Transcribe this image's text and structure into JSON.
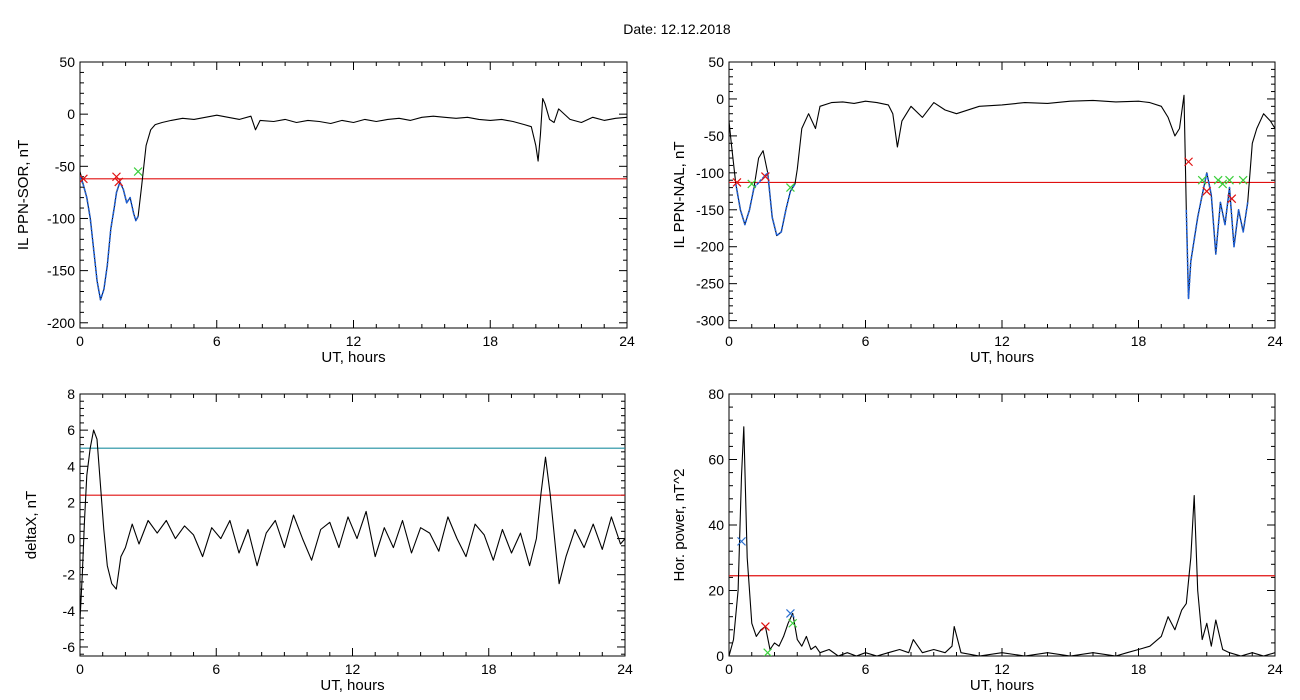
{
  "figure": {
    "title": "Date:  12.12.2018"
  },
  "colors": {
    "axes": "#000000",
    "trace": "#000000",
    "highlight_trace": "#1f5fd4",
    "threshold_red": "#e01010",
    "threshold_teal": "#1f8fa0",
    "marker_red": "#e01010",
    "marker_green": "#3ccf3c",
    "marker_blue": "#2a6fd0"
  },
  "chart_data": [
    {
      "id": "sor",
      "type": "line",
      "title": "",
      "xlabel": "UT, hours",
      "ylabel": "IL PPN-SOR, nT",
      "xlim": [
        0,
        24
      ],
      "ylim": [
        -205,
        50
      ],
      "xticks": [
        0,
        6,
        12,
        18,
        24
      ],
      "yticks": [
        50,
        0,
        -50,
        -100,
        -150,
        -200
      ],
      "grid": false,
      "series": [
        {
          "role": "trace",
          "x": [
            0,
            0.15,
            0.3,
            0.45,
            0.6,
            0.75,
            0.9,
            1.05,
            1.2,
            1.35,
            1.5,
            1.6,
            1.75,
            1.9,
            2.05,
            2.2,
            2.35,
            2.45,
            2.55,
            2.7,
            2.9,
            3.1,
            3.3,
            3.6,
            4.0,
            4.5,
            5.0,
            5.5,
            6.0,
            6.5,
            7.0,
            7.5,
            7.7,
            7.9,
            8.5,
            9.0,
            9.5,
            10.0,
            10.5,
            11.0,
            11.5,
            12.0,
            12.5,
            13.0,
            13.5,
            14.0,
            14.5,
            15.0,
            15.5,
            16.0,
            16.5,
            17.0,
            17.5,
            18.0,
            18.5,
            19.0,
            19.5,
            19.8,
            20.0,
            20.1,
            20.2,
            20.3,
            20.4,
            20.6,
            20.8,
            21.0,
            21.5,
            22.0,
            22.5,
            23.0,
            23.5,
            24.0
          ],
          "y": [
            -55,
            -68,
            -80,
            -100,
            -130,
            -160,
            -178,
            -168,
            -145,
            -110,
            -90,
            -75,
            -65,
            -72,
            -85,
            -80,
            -95,
            -102,
            -98,
            -70,
            -30,
            -15,
            -10,
            -8,
            -6,
            -4,
            -5,
            -3,
            -1,
            -3,
            -5,
            -2,
            -15,
            -6,
            -7,
            -5,
            -8,
            -6,
            -7,
            -9,
            -6,
            -8,
            -5,
            -7,
            -5,
            -4,
            -6,
            -3,
            -2,
            -3,
            -4,
            -3,
            -5,
            -6,
            -5,
            -7,
            -10,
            -12,
            -30,
            -45,
            -20,
            15,
            10,
            -5,
            -8,
            5,
            -5,
            -8,
            -3,
            -6,
            -4,
            -3
          ]
        },
        {
          "role": "highlight",
          "x": [
            0,
            0.15,
            0.3,
            0.45,
            0.6,
            0.75,
            0.9,
            1.05,
            1.2,
            1.35,
            1.5,
            1.6,
            1.75,
            1.9,
            2.05,
            2.2,
            2.35,
            2.45,
            2.55
          ],
          "y": [
            -60,
            -68,
            -80,
            -100,
            -130,
            -160,
            -178,
            -168,
            -145,
            -110,
            -90,
            -75,
            -65,
            -72,
            -85,
            -80,
            -95,
            -102,
            -98
          ]
        }
      ],
      "thresholds": [
        {
          "y": -62,
          "color": "red"
        }
      ],
      "markers": [
        {
          "x": 0.15,
          "y": -62,
          "color": "red"
        },
        {
          "x": 1.6,
          "y": -60,
          "color": "red"
        },
        {
          "x": 1.7,
          "y": -65,
          "color": "red"
        },
        {
          "x": 2.55,
          "y": -55,
          "color": "green"
        }
      ]
    },
    {
      "id": "nal",
      "type": "line",
      "title": "",
      "xlabel": "UT, hours",
      "ylabel": "IL PPN-NAL, nT",
      "xlim": [
        0,
        24
      ],
      "ylim": [
        -310,
        50
      ],
      "xticks": [
        0,
        6,
        12,
        18,
        24
      ],
      "yticks": [
        50,
        0,
        -50,
        -100,
        -150,
        -200,
        -250,
        -300
      ],
      "grid": false,
      "series": [
        {
          "role": "trace",
          "x": [
            0,
            0.1,
            0.3,
            0.5,
            0.7,
            0.9,
            1.1,
            1.3,
            1.5,
            1.7,
            1.9,
            2.1,
            2.3,
            2.5,
            2.7,
            2.9,
            3.0,
            3.2,
            3.5,
            3.8,
            4.0,
            4.5,
            5.0,
            5.5,
            6.0,
            6.5,
            7.0,
            7.2,
            7.4,
            7.6,
            8.0,
            8.5,
            9.0,
            9.5,
            10.0,
            11.0,
            12.0,
            13.0,
            14.0,
            15.0,
            16.0,
            17.0,
            18.0,
            18.5,
            19.0,
            19.3,
            19.6,
            19.8,
            20.0,
            20.1,
            20.2,
            20.3,
            20.4,
            20.6,
            20.8,
            21.0,
            21.2,
            21.4,
            21.6,
            21.8,
            22.0,
            22.2,
            22.4,
            22.6,
            22.8,
            23.0,
            23.2,
            23.5,
            23.8,
            24.0
          ],
          "y": [
            -30,
            -60,
            -115,
            -150,
            -170,
            -150,
            -120,
            -80,
            -70,
            -100,
            -160,
            -185,
            -180,
            -150,
            -125,
            -115,
            -95,
            -40,
            -20,
            -40,
            -10,
            -5,
            -4,
            -6,
            -3,
            -5,
            -8,
            -20,
            -65,
            -30,
            -10,
            -25,
            -5,
            -15,
            -20,
            -10,
            -8,
            -5,
            -6,
            -3,
            -2,
            -4,
            -3,
            -5,
            -10,
            -25,
            -50,
            -40,
            5,
            -150,
            -270,
            -220,
            -200,
            -160,
            -130,
            -100,
            -130,
            -210,
            -140,
            -170,
            -120,
            -200,
            -150,
            -180,
            -140,
            -60,
            -40,
            -20,
            -30,
            -40
          ]
        },
        {
          "role": "highlight",
          "x": [
            0.3,
            0.5,
            0.7,
            0.9,
            1.1,
            1.7,
            1.9,
            2.1,
            2.3,
            2.5,
            2.7,
            2.9
          ],
          "y": [
            -115,
            -150,
            -170,
            -150,
            -120,
            -100,
            -160,
            -185,
            -180,
            -150,
            -125,
            -115
          ]
        },
        {
          "role": "highlight",
          "x": [
            20.1,
            20.2,
            20.3,
            20.4,
            20.6,
            20.8,
            21.0,
            21.2,
            21.4,
            21.6,
            21.8,
            22.0,
            22.2,
            22.4,
            22.6,
            22.8
          ],
          "y": [
            -150,
            -270,
            -220,
            -200,
            -160,
            -130,
            -100,
            -130,
            -210,
            -140,
            -170,
            -120,
            -200,
            -150,
            -180,
            -140
          ]
        }
      ],
      "thresholds": [
        {
          "y": -113,
          "color": "red"
        }
      ],
      "markers": [
        {
          "x": 0.35,
          "y": -113,
          "color": "red"
        },
        {
          "x": 1.0,
          "y": -115,
          "color": "green"
        },
        {
          "x": 1.6,
          "y": -105,
          "color": "red"
        },
        {
          "x": 2.7,
          "y": -120,
          "color": "green"
        },
        {
          "x": 20.2,
          "y": -85,
          "color": "red"
        },
        {
          "x": 20.8,
          "y": -110,
          "color": "green"
        },
        {
          "x": 21.0,
          "y": -125,
          "color": "red"
        },
        {
          "x": 21.5,
          "y": -110,
          "color": "green"
        },
        {
          "x": 21.7,
          "y": -115,
          "color": "green"
        },
        {
          "x": 22.0,
          "y": -110,
          "color": "green"
        },
        {
          "x": 22.1,
          "y": -135,
          "color": "red"
        },
        {
          "x": 22.6,
          "y": -110,
          "color": "green"
        }
      ]
    },
    {
      "id": "deltax",
      "type": "line",
      "title": "",
      "xlabel": "UT, hours",
      "ylabel": "deltaX, nT",
      "xlim": [
        0,
        24
      ],
      "ylim": [
        -6.5,
        8
      ],
      "xticks": [
        0,
        6,
        12,
        18,
        24
      ],
      "yticks": [
        8,
        6,
        4,
        2,
        0,
        -2,
        -4,
        -6
      ],
      "grid": false,
      "series": [
        {
          "role": "trace",
          "x": [
            0,
            0.1,
            0.2,
            0.3,
            0.45,
            0.6,
            0.75,
            0.9,
            1.05,
            1.2,
            1.4,
            1.6,
            1.8,
            2.0,
            2.3,
            2.6,
            3.0,
            3.4,
            3.8,
            4.2,
            4.6,
            5.0,
            5.4,
            5.8,
            6.2,
            6.6,
            7.0,
            7.4,
            7.8,
            8.2,
            8.6,
            9.0,
            9.4,
            9.8,
            10.2,
            10.6,
            11.0,
            11.4,
            11.8,
            12.2,
            12.6,
            13.0,
            13.4,
            13.8,
            14.2,
            14.6,
            15.0,
            15.4,
            15.8,
            16.2,
            16.6,
            17.0,
            17.4,
            17.8,
            18.2,
            18.6,
            19.0,
            19.4,
            19.8,
            20.1,
            20.3,
            20.5,
            20.7,
            20.9,
            21.1,
            21.4,
            21.8,
            22.2,
            22.6,
            23.0,
            23.4,
            23.8,
            24.0
          ],
          "y": [
            -4.5,
            -2.0,
            1.0,
            3.5,
            5.0,
            6.0,
            5.5,
            3.0,
            0.5,
            -1.5,
            -2.5,
            -2.8,
            -1.0,
            -0.5,
            0.8,
            -0.3,
            1.0,
            0.3,
            1.0,
            0.0,
            0.7,
            0.2,
            -1.0,
            0.6,
            0.0,
            1.0,
            -0.8,
            0.5,
            -1.5,
            0.3,
            1.0,
            -0.5,
            1.3,
            0.0,
            -1.2,
            0.5,
            0.9,
            -0.5,
            1.2,
            0.0,
            1.5,
            -1.0,
            0.6,
            -0.5,
            1.0,
            -0.8,
            0.6,
            0.3,
            -0.7,
            1.2,
            0.0,
            -1.0,
            0.8,
            0.2,
            -1.2,
            0.5,
            -0.8,
            0.3,
            -1.5,
            0.0,
            2.5,
            4.5,
            2.5,
            0.0,
            -2.5,
            -1.0,
            0.5,
            -0.5,
            0.8,
            -0.6,
            1.2,
            -0.3,
            0.0
          ]
        }
      ],
      "thresholds": [
        {
          "y": 5.0,
          "color": "teal"
        },
        {
          "y": 2.4,
          "color": "red"
        }
      ],
      "markers": []
    },
    {
      "id": "power",
      "type": "line",
      "title": "",
      "xlabel": "UT, hours",
      "ylabel": "Hor. power, nT^2",
      "xlim": [
        0,
        24
      ],
      "ylim": [
        0,
        80
      ],
      "xticks": [
        0,
        6,
        12,
        18,
        24
      ],
      "yticks": [
        80,
        60,
        40,
        20,
        0
      ],
      "grid": false,
      "series": [
        {
          "role": "trace",
          "x": [
            0,
            0.2,
            0.4,
            0.55,
            0.65,
            0.8,
            1.0,
            1.2,
            1.4,
            1.6,
            1.8,
            2.0,
            2.2,
            2.4,
            2.6,
            2.8,
            3.0,
            3.2,
            3.4,
            3.6,
            3.8,
            4.0,
            4.4,
            4.8,
            5.2,
            5.6,
            6.0,
            6.5,
            7.0,
            7.5,
            7.9,
            8.1,
            8.5,
            9.0,
            9.5,
            9.8,
            9.9,
            10.2,
            11.0,
            12.0,
            13.0,
            14.0,
            15.0,
            16.0,
            17.0,
            17.5,
            18.0,
            18.5,
            19.0,
            19.3,
            19.6,
            19.9,
            20.1,
            20.3,
            20.45,
            20.6,
            20.8,
            21.0,
            21.2,
            21.4,
            21.7,
            22.0,
            22.5,
            23.0,
            23.5,
            24.0
          ],
          "y": [
            0,
            5,
            20,
            55,
            70,
            30,
            10,
            6,
            8,
            9,
            2,
            4,
            3,
            6,
            10,
            13,
            5,
            3,
            6,
            2,
            3,
            1,
            2,
            0,
            1,
            0,
            1,
            0,
            1,
            2,
            1,
            5,
            1,
            2,
            1,
            3,
            9,
            1,
            0,
            1,
            0,
            1,
            0,
            1,
            0,
            1,
            2,
            3,
            6,
            12,
            8,
            14,
            16,
            30,
            49,
            20,
            5,
            10,
            3,
            11,
            2,
            1,
            0,
            1,
            0,
            1
          ]
        }
      ],
      "thresholds": [
        {
          "y": 24.5,
          "color": "red"
        }
      ],
      "markers": [
        {
          "x": 0.55,
          "y": 35,
          "color": "blue"
        },
        {
          "x": 1.6,
          "y": 9,
          "color": "red"
        },
        {
          "x": 1.7,
          "y": 1,
          "color": "green"
        },
        {
          "x": 2.7,
          "y": 13,
          "color": "blue"
        },
        {
          "x": 2.8,
          "y": 10,
          "color": "green"
        }
      ]
    }
  ]
}
